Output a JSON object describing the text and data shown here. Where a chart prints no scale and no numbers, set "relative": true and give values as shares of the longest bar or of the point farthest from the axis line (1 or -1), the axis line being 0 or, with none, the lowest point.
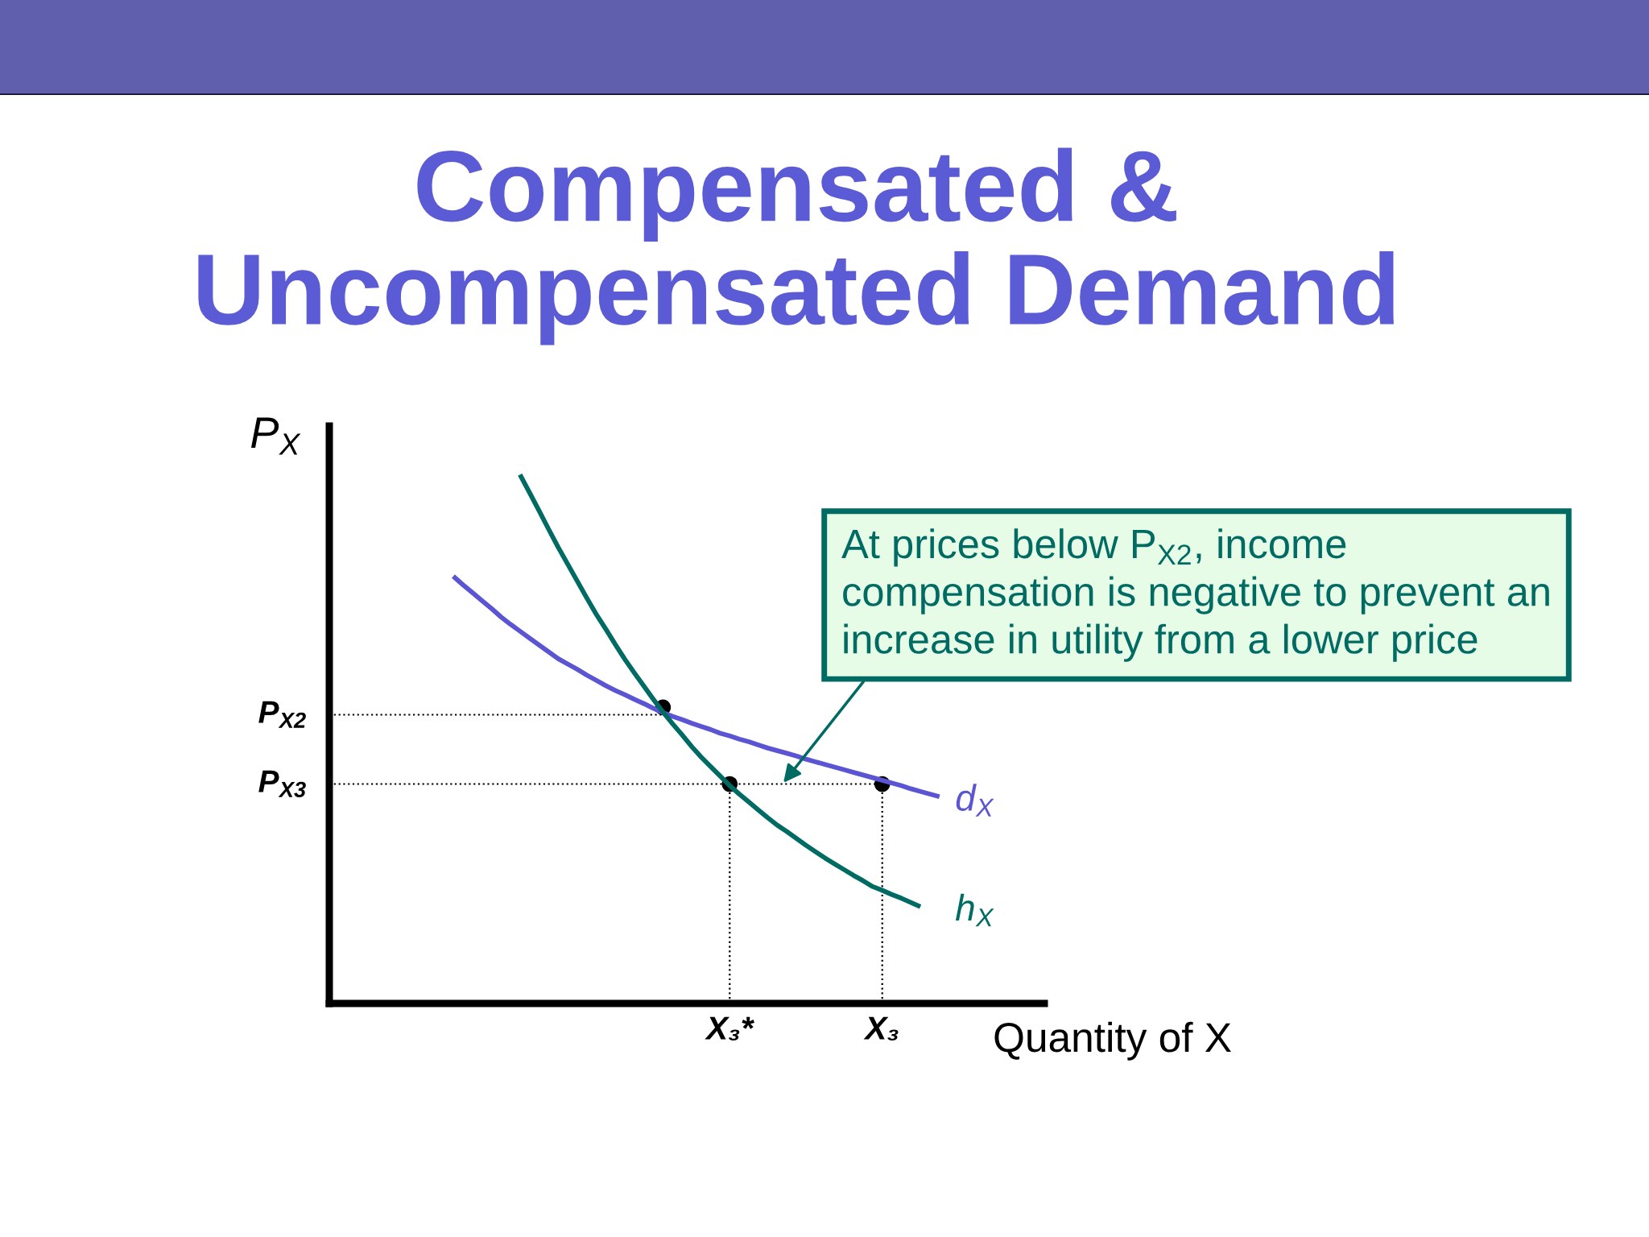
{
  "chart_data": {
    "type": "line",
    "title": "Compensated &\nUncompensated Demand",
    "xlabel": "Quantity of X",
    "ylabel": "P$_{X}$",
    "relative": true,
    "categories": [
      null,
      null,
      null,
      null,
      null,
      null,
      null,
      null,
      null,
      null,
      null,
      null,
      null,
      null,
      null,
      null,
      null,
      null,
      null,
      null,
      null,
      null,
      null,
      null,
      null,
      null,
      null,
      null,
      null,
      null,
      null,
      null,
      null,
      null,
      null,
      null,
      null,
      null,
      null,
      null,
      null,
      null,
      "X₃*",
      null,
      null,
      null,
      null,
      null,
      null,
      null,
      null,
      null,
      null,
      null,
      null,
      null,
      null,
      null,
      "X₃",
      null,
      null,
      null,
      null,
      null,
      null,
      null,
      null,
      null,
      null,
      null,
      null,
      null,
      null,
      null,
      null,
      null
    ],
    "series": [
      {
        "type": "lollipop",
        "color": "#000000",
        "line_style": "dotted",
        "marker": "circle",
        "values": [
          null,
          null,
          null,
          null,
          null,
          null,
          null,
          null,
          null,
          null,
          null,
          null,
          null,
          null,
          null,
          null,
          null,
          null,
          null,
          null,
          null,
          null,
          null,
          null,
          null,
          null,
          null,
          null,
          null,
          null,
          null,
          null,
          null,
          null,
          null,
          null,
          null,
          null,
          null,
          null,
          null,
          null,
          0.415,
          null,
          null,
          null,
          null,
          null,
          null,
          null,
          null,
          null,
          null,
          null,
          null,
          null,
          null,
          null,
          0.415,
          null,
          null,
          null,
          null,
          null,
          null,
          null,
          null,
          null,
          null,
          null,
          null,
          null,
          null,
          null,
          null,
          null
        ]
      },
      {
        "type": "scatter",
        "color": "#000000",
        "marker": "circle",
        "values": [
          null,
          null,
          null,
          null,
          null,
          null,
          null,
          null,
          null,
          null,
          null,
          null,
          null,
          null,
          null,
          null,
          null,
          null,
          null,
          null,
          null,
          null,
          null,
          null,
          null,
          null,
          null,
          null,
          null,
          null,
          null,
          null,
          null,
          null,
          null,
          0.56,
          null,
          null,
          null,
          null,
          null,
          null,
          null,
          null,
          null,
          null,
          null,
          null,
          null,
          null,
          null,
          null,
          null,
          null,
          null,
          null,
          null,
          null,
          null,
          null,
          null,
          null,
          null,
          null,
          null,
          null,
          null,
          null,
          null,
          null,
          null,
          null,
          null,
          null,
          null,
          null
        ]
      },
      {
        "name": "d$_{X}$",
        "color": "#5b55d3",
        "values": [
          null,
          null,
          null,
          null,
          null,
          null,
          null,
          null,
          null,
          null,
          null,
          null,
          null,
          0.808,
          0.792,
          0.777,
          0.762,
          0.747,
          0.731,
          0.717,
          0.704,
          0.691,
          0.678,
          0.665,
          0.652,
          0.642,
          0.632,
          0.621,
          0.611,
          0.601,
          0.592,
          0.584,
          0.575,
          0.567,
          0.558,
          0.55,
          0.543,
          0.537,
          0.53,
          0.524,
          0.518,
          0.511,
          0.506,
          0.5,
          0.495,
          0.489,
          0.483,
          0.478,
          0.473,
          0.468,
          0.462,
          0.457,
          0.452,
          0.447,
          0.442,
          0.437,
          0.432,
          0.427,
          0.422,
          0.417,
          0.412,
          0.406,
          0.401,
          0.396,
          0.391,
          null,
          null,
          null,
          null,
          null,
          null,
          null,
          null,
          null,
          null,
          null
        ]
      },
      {
        "name": "h$_{X}$",
        "color": "#006b63",
        "values": [
          null,
          null,
          null,
          null,
          null,
          null,
          null,
          null,
          null,
          null,
          null,
          null,
          null,
          null,
          null,
          null,
          null,
          null,
          null,
          null,
          1.0,
          0.966,
          0.932,
          0.897,
          0.863,
          0.831,
          0.799,
          0.767,
          0.736,
          0.708,
          0.679,
          0.651,
          0.625,
          0.6,
          0.575,
          0.551,
          0.529,
          0.508,
          0.486,
          0.466,
          0.448,
          0.43,
          0.412,
          0.396,
          0.381,
          0.366,
          0.351,
          0.337,
          0.325,
          0.312,
          0.299,
          0.287,
          0.275,
          0.264,
          0.253,
          0.242,
          0.232,
          0.221,
          0.214,
          0.206,
          0.199,
          0.191,
          0.183,
          null,
          null,
          null,
          null,
          null,
          null,
          null,
          null,
          null,
          null,
          null,
          null,
          null
        ]
      }
    ],
    "ref_lines": [
      {
        "axis": "y",
        "value": 0.546,
        "label": "P$_{X2}$",
        "color": "#000000",
        "line_style": "dotted"
      },
      {
        "axis": "y",
        "value": 0.415,
        "label": "P$_{X3}$",
        "color": "#000000",
        "line_style": "dotted"
      }
    ],
    "annotations": [
      "At prices below P$_{X2}$, income\ncompensation is negative to prevent an\nincrease in utility from a lower price"
    ]
  }
}
